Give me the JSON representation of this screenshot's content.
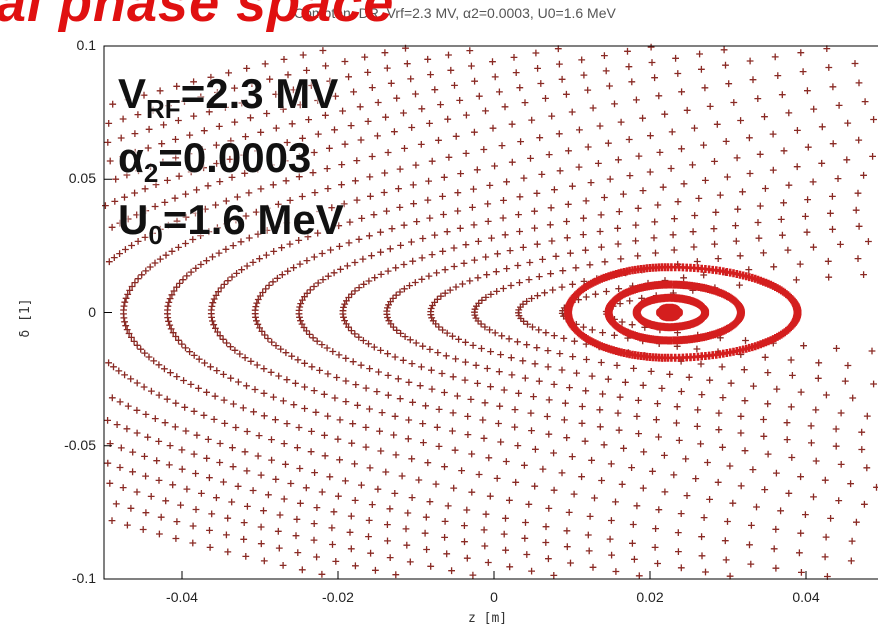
{
  "header": {
    "big_title": "ial phase space",
    "plot_title": "Compton, DR, Vrf=2.3 MV, α2=0.0003, U0=1.6 MeV"
  },
  "annotations": {
    "vrf": {
      "sym": "V",
      "sub": "RF",
      "rest": "=2.3 MV"
    },
    "alpha": {
      "sym": "α",
      "sub": "2",
      "rest": "=0.0003"
    },
    "u0": {
      "sym": "U",
      "sub": "0",
      "rest": "=1.6 MeV"
    }
  },
  "colors": {
    "tracks": "#8a2a24",
    "bucket": "#d41e1e",
    "title": "#e01010"
  },
  "chart_data": {
    "type": "scatter",
    "title": "Compton, DR, Vrf=2.3 MV, α2=0.0003, U0=1.6 MeV",
    "xlabel": "z [m]",
    "ylabel": "δ [1]",
    "xlim": [
      -0.05,
      0.05
    ],
    "ylim": [
      -0.1,
      0.1
    ],
    "x_ticks": [
      -0.04,
      -0.02,
      0,
      0.02,
      0.04
    ],
    "x_tick_labels": [
      "-0.04",
      "-0.02",
      "0",
      "0.02",
      "0.04"
    ],
    "y_ticks": [
      -0.1,
      -0.05,
      0,
      0.05,
      0.1
    ],
    "y_tick_labels": [
      "-0.1",
      "-0.05",
      "0",
      "0.05",
      "0.1"
    ],
    "marker": "+",
    "grid": false,
    "fixed_point": {
      "z": 0.0225,
      "delta": 0
    },
    "series": [
      {
        "type": "outer_tracks",
        "count": 20,
        "base_delta": 0.0025,
        "delta_step": 0.0045
      },
      {
        "type": "bucket_orbits",
        "count": 4,
        "center_z": 0.0225,
        "z_half_widths": [
          0.0012,
          0.0042,
          0.0078,
          0.013
        ],
        "delta_half_heights": [
          0.0018,
          0.0055,
          0.0105,
          0.017
        ]
      }
    ]
  }
}
